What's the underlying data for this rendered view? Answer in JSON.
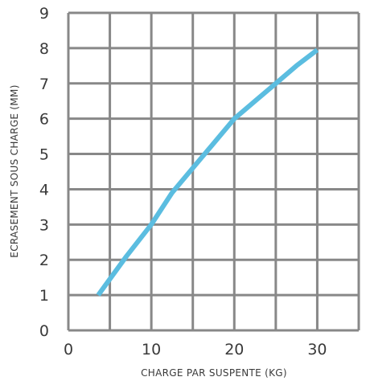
{
  "chart_data": {
    "type": "line",
    "title": "",
    "xlabel": "CHARGE PAR SUSPENTE (KG)",
    "ylabel": "ECRASEMENT SOUS CHARGE (MM)",
    "xlim": [
      0,
      35
    ],
    "ylim": [
      0,
      9
    ],
    "xticks": [
      0,
      10,
      20,
      30
    ],
    "xtick_labels": [
      "0",
      "10",
      "20",
      "30"
    ],
    "yticks": [
      0,
      1,
      2,
      3,
      4,
      5,
      6,
      7,
      8,
      9
    ],
    "ytick_labels": [
      "0",
      "1",
      "2",
      "3",
      "4",
      "5",
      "6",
      "7",
      "8",
      "9"
    ],
    "grid": true,
    "x_grid_step": 5,
    "series": [
      {
        "color": "#5bbde0",
        "x": [
          3.6,
          7,
          10,
          12.5,
          15,
          17.5,
          20,
          22.5,
          25,
          27.5,
          30
        ],
        "y": [
          1.0,
          2.1,
          3.0,
          3.9,
          4.6,
          5.3,
          6.0,
          6.5,
          7.0,
          7.5,
          7.95
        ]
      }
    ]
  },
  "colors": {
    "grid": "#888888",
    "line": "#5bbde0",
    "text": "#3a3a3a"
  }
}
